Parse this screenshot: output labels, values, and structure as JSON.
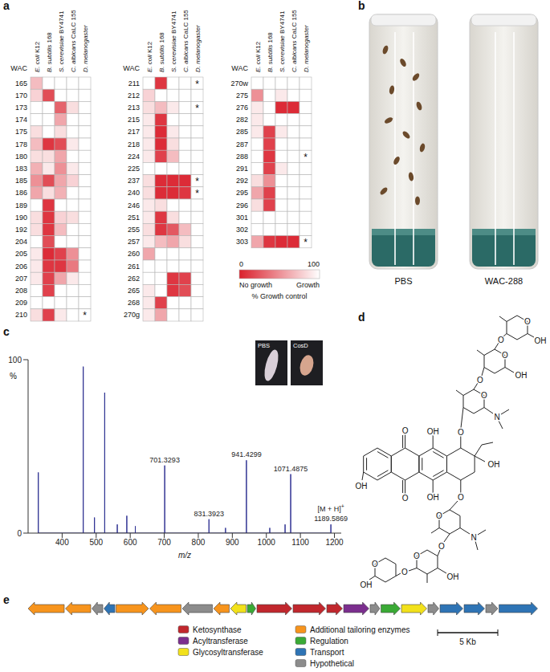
{
  "panel_labels": [
    "a",
    "b",
    "c",
    "d",
    "e"
  ],
  "panel_a": {
    "row_label_title": "WAC",
    "columns": [
      "E. coli K12",
      "B. subtilis 168",
      "S. cerevisiae BY4741",
      "C. albicans CaLC 155",
      "D. melanogaster"
    ],
    "star_symbol": "*",
    "color_scale": {
      "range": [
        0,
        100
      ],
      "ticks": [
        0,
        100
      ],
      "low_label": "No growth",
      "high_label": "Growth",
      "title": "% Growth control"
    },
    "blocks": [
      [
        {
          "wac": "165",
          "values": [
            70,
            100,
            100,
            100,
            null
          ],
          "star": false
        },
        {
          "wac": "170",
          "values": [
            80,
            20,
            100,
            100,
            null
          ],
          "star": false
        },
        {
          "wac": "173",
          "values": [
            100,
            100,
            30,
            85,
            null
          ],
          "star": false
        },
        {
          "wac": "174",
          "values": [
            100,
            100,
            60,
            100,
            null
          ],
          "star": false
        },
        {
          "wac": "175",
          "values": [
            85,
            100,
            85,
            100,
            null
          ],
          "star": false
        },
        {
          "wac": "178",
          "values": [
            70,
            10,
            20,
            90,
            null
          ],
          "star": false
        },
        {
          "wac": "180",
          "values": [
            85,
            85,
            60,
            100,
            null
          ],
          "star": false
        },
        {
          "wac": "183",
          "values": [
            65,
            90,
            50,
            90,
            null
          ],
          "star": false
        },
        {
          "wac": "185",
          "values": [
            50,
            20,
            60,
            80,
            null
          ],
          "star": false
        },
        {
          "wac": "186",
          "values": [
            60,
            85,
            65,
            100,
            null
          ],
          "star": false
        },
        {
          "wac": "189",
          "values": [
            100,
            10,
            100,
            100,
            null
          ],
          "star": false
        },
        {
          "wac": "190",
          "values": [
            85,
            10,
            80,
            85,
            null
          ],
          "star": false
        },
        {
          "wac": "192",
          "values": [
            85,
            10,
            70,
            100,
            null
          ],
          "star": false
        },
        {
          "wac": "204",
          "values": [
            100,
            20,
            100,
            100,
            null
          ],
          "star": false
        },
        {
          "wac": "205",
          "values": [
            90,
            5,
            15,
            50,
            null
          ],
          "star": false
        },
        {
          "wac": "206",
          "values": [
            90,
            10,
            10,
            40,
            null
          ],
          "star": false
        },
        {
          "wac": "207",
          "values": [
            90,
            15,
            60,
            90,
            null
          ],
          "star": false
        },
        {
          "wac": "208",
          "values": [
            100,
            15,
            100,
            100,
            null
          ],
          "star": false
        },
        {
          "wac": "209",
          "values": [
            100,
            100,
            100,
            100,
            null
          ],
          "star": false
        },
        {
          "wac": "210",
          "values": [
            85,
            15,
            90,
            100,
            null
          ],
          "star": true
        }
      ],
      [
        {
          "wac": "211",
          "values": [
            100,
            10,
            100,
            100,
            null
          ],
          "star": true
        },
        {
          "wac": "212",
          "values": [
            80,
            100,
            100,
            100,
            null
          ],
          "star": false
        },
        {
          "wac": "213",
          "values": [
            85,
            70,
            90,
            100,
            null
          ],
          "star": true
        },
        {
          "wac": "215",
          "values": [
            90,
            10,
            100,
            100,
            null
          ],
          "star": false
        },
        {
          "wac": "217",
          "values": [
            90,
            5,
            90,
            100,
            null
          ],
          "star": false
        },
        {
          "wac": "218",
          "values": [
            90,
            5,
            85,
            100,
            null
          ],
          "star": false
        },
        {
          "wac": "224",
          "values": [
            90,
            15,
            70,
            100,
            null
          ],
          "star": false
        },
        {
          "wac": "225",
          "values": [
            100,
            100,
            100,
            100,
            null
          ],
          "star": false
        },
        {
          "wac": "237",
          "values": [
            85,
            5,
            5,
            5,
            null
          ],
          "star": true
        },
        {
          "wac": "240",
          "values": [
            85,
            5,
            5,
            10,
            null
          ],
          "star": true
        },
        {
          "wac": "246",
          "values": [
            90,
            85,
            100,
            100,
            null
          ],
          "star": false
        },
        {
          "wac": "251",
          "values": [
            90,
            10,
            85,
            100,
            null
          ],
          "star": false
        },
        {
          "wac": "255",
          "values": [
            85,
            10,
            25,
            70,
            null
          ],
          "star": false
        },
        {
          "wac": "257",
          "values": [
            90,
            70,
            60,
            85,
            null
          ],
          "star": false
        },
        {
          "wac": "260",
          "values": [
            60,
            100,
            100,
            100,
            null
          ],
          "star": false
        },
        {
          "wac": "261",
          "values": [
            100,
            100,
            100,
            100,
            null
          ],
          "star": false
        },
        {
          "wac": "262",
          "values": [
            100,
            100,
            10,
            15,
            null
          ],
          "star": false
        },
        {
          "wac": "265",
          "values": [
            90,
            100,
            10,
            20,
            null
          ],
          "star": false
        },
        {
          "wac": "268",
          "values": [
            90,
            15,
            100,
            100,
            null
          ],
          "star": false
        },
        {
          "wac": "270g",
          "values": [
            90,
            60,
            100,
            100,
            null
          ],
          "star": false
        }
      ],
      [
        {
          "wac": "270w",
          "values": [
            100,
            100,
            100,
            100,
            null
          ],
          "star": false
        },
        {
          "wac": "275",
          "values": [
            50,
            100,
            90,
            100,
            null
          ],
          "star": false
        },
        {
          "wac": "276",
          "values": [
            90,
            100,
            5,
            5,
            null
          ],
          "star": false
        },
        {
          "wac": "282",
          "values": [
            90,
            100,
            100,
            100,
            null
          ],
          "star": false
        },
        {
          "wac": "285",
          "values": [
            90,
            15,
            90,
            100,
            null
          ],
          "star": false
        },
        {
          "wac": "287",
          "values": [
            100,
            15,
            100,
            100,
            null
          ],
          "star": false
        },
        {
          "wac": "288",
          "values": [
            100,
            10,
            100,
            100,
            null
          ],
          "star": true
        },
        {
          "wac": "291",
          "values": [
            100,
            15,
            90,
            100,
            null
          ],
          "star": false
        },
        {
          "wac": "292",
          "values": [
            85,
            50,
            100,
            100,
            null
          ],
          "star": false
        },
        {
          "wac": "295",
          "values": [
            60,
            15,
            100,
            100,
            null
          ],
          "star": false
        },
        {
          "wac": "296",
          "values": [
            85,
            15,
            100,
            100,
            null
          ],
          "star": false
        },
        {
          "wac": "301",
          "values": [
            100,
            100,
            100,
            100,
            null
          ],
          "star": false
        },
        {
          "wac": "302",
          "values": [
            100,
            100,
            100,
            100,
            null
          ],
          "star": false
        },
        {
          "wac": "303",
          "values": [
            60,
            10,
            5,
            5,
            null
          ],
          "star": true
        }
      ]
    ]
  },
  "panel_b": {
    "tube_labels": [
      "PBS",
      "WAC-288"
    ]
  },
  "panel_c_inset": {
    "labels": [
      "PBS",
      "CosD"
    ]
  },
  "chart_data": {
    "type": "stick",
    "x_label": "m/z",
    "y_label": "%",
    "x": [
      330,
      462,
      495,
      525,
      562,
      590,
      615,
      701.3293,
      831.3923,
      880,
      941.4299,
      1010,
      1055,
      1071.4875,
      1189.5869
    ],
    "values": [
      35,
      96,
      9,
      81,
      5,
      10,
      4,
      39,
      8,
      3,
      42,
      3,
      5,
      34,
      5
    ],
    "labels": [
      null,
      null,
      null,
      null,
      null,
      null,
      null,
      "701.3293",
      "831.3923",
      null,
      "941.4299",
      null,
      null,
      "1071.4875",
      "1189.5869"
    ],
    "annotation": {
      "text": "[M + H]+",
      "x": 1189.5869
    },
    "xlim": [
      300,
      1220
    ],
    "xticks": [
      400,
      500,
      600,
      700,
      800,
      900,
      1000,
      1100,
      1200
    ],
    "ylim": [
      0,
      100
    ],
    "yticks": [
      0,
      100
    ],
    "color": "#2e3192"
  },
  "panel_d": {
    "atom_labels": [
      "O",
      "O",
      "OH",
      "OH",
      "OH",
      "OH",
      "O",
      "O",
      "O",
      "N",
      "O",
      "O",
      "OH",
      "O",
      "O",
      "OH",
      "O",
      "N",
      "O",
      "O",
      "OH",
      "O",
      "O",
      "OH"
    ]
  },
  "panel_e": {
    "legend": [
      {
        "name": "Ketosynthase",
        "color": "#c1272d"
      },
      {
        "name": "Acyltransferase",
        "color": "#7b2e8e"
      },
      {
        "name": "Glycosyltransferase",
        "color": "#f2e11b"
      },
      {
        "name": "Additional tailoring enzymes",
        "color": "#f7941d"
      },
      {
        "name": "Regulation",
        "color": "#3aaa35"
      },
      {
        "name": "Transport",
        "color": "#2e74b5"
      },
      {
        "name": "Hypothetical",
        "color": "#8c8c8c"
      }
    ],
    "genes": [
      {
        "category": "Additional tailoring enzymes",
        "strand": "-",
        "length_kb": 3.0
      },
      {
        "category": "Additional tailoring enzymes",
        "strand": "-",
        "length_kb": 2.1
      },
      {
        "category": "Hypothetical",
        "strand": "-",
        "length_kb": 0.9
      },
      {
        "category": "Transport",
        "strand": "-",
        "length_kb": 0.9
      },
      {
        "category": "Additional tailoring enzymes",
        "strand": "+",
        "length_kb": 2.7
      },
      {
        "category": "Additional tailoring enzymes",
        "strand": "-",
        "length_kb": 2.6
      },
      {
        "category": "Hypothetical",
        "strand": "-",
        "length_kb": 2.5
      },
      {
        "category": "Additional tailoring enzymes",
        "strand": "-",
        "length_kb": 1.3
      },
      {
        "category": "Glycosyltransferase",
        "strand": "-",
        "length_kb": 1.3
      },
      {
        "category": "Regulation",
        "strand": "+",
        "length_kb": 0.7
      },
      {
        "category": "Ketosynthase",
        "strand": "+",
        "length_kb": 2.9
      },
      {
        "category": "Ketosynthase",
        "strand": "+",
        "length_kb": 2.7
      },
      {
        "category": "Ketosynthase",
        "strand": "+",
        "length_kb": 1.3
      },
      {
        "category": "Acyltransferase",
        "strand": "+",
        "length_kb": 2.1
      },
      {
        "category": "Hypothetical",
        "strand": "+",
        "length_kb": 0.8
      },
      {
        "category": "Regulation",
        "strand": "+",
        "length_kb": 1.6
      },
      {
        "category": "Glycosyltransferase",
        "strand": "+",
        "length_kb": 2.1
      },
      {
        "category": "Hypothetical",
        "strand": "+",
        "length_kb": 0.9
      },
      {
        "category": "Transport",
        "strand": "+",
        "length_kb": 1.9
      },
      {
        "category": "Transport",
        "strand": "+",
        "length_kb": 1.7
      },
      {
        "category": "Hypothetical",
        "strand": "+",
        "length_kb": 1.0
      },
      {
        "category": "Transport",
        "strand": "+",
        "length_kb": 3.2
      }
    ],
    "scale_bar": {
      "length_kb": 5,
      "label": "5 Kb"
    }
  }
}
